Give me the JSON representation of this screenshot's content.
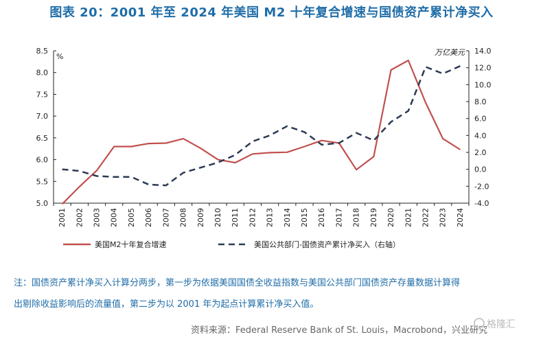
{
  "title": "图表 20：2001 年至 2024 年美国 M2 十年复合增速与国债资产累计净买入",
  "chart_data": {
    "type": "line",
    "x": [
      "2001",
      "2002",
      "2003",
      "2004",
      "2005",
      "2006",
      "2007",
      "2008",
      "2009",
      "2010",
      "2011",
      "2012",
      "2013",
      "2014",
      "2015",
      "2016",
      "2017",
      "2018",
      "2019",
      "2020",
      "2021",
      "2022",
      "2023",
      "2024"
    ],
    "left_axis": {
      "unit_label": "%",
      "ylim": [
        5.0,
        8.5
      ],
      "ticks": [
        "5.0",
        "5.5",
        "6.0",
        "6.5",
        "7.0",
        "7.5",
        "8.0",
        "8.5"
      ]
    },
    "right_axis": {
      "unit_label": "万亿美元",
      "ylim": [
        -4.0,
        14.0
      ],
      "ticks": [
        "-4.0",
        "-2.0",
        "0.0",
        "2.0",
        "4.0",
        "6.0",
        "8.0",
        "10.0",
        "12.0",
        "14.0"
      ]
    },
    "series": [
      {
        "name": "美国M2十年复合增速",
        "axis": "left",
        "style": "solid",
        "color": "#c0504d",
        "values": [
          4.98,
          5.38,
          5.75,
          6.3,
          6.3,
          6.37,
          6.38,
          6.48,
          6.26,
          6.0,
          5.93,
          6.13,
          6.16,
          6.17,
          6.3,
          6.44,
          6.38,
          5.77,
          6.07,
          8.06,
          8.28,
          7.31,
          6.48,
          6.23
        ]
      },
      {
        "name": "美国公共部门-国债资产累计净买入（右轴）",
        "axis": "right",
        "style": "dashed",
        "color": "#2b3a55",
        "values": [
          0.0,
          -0.2,
          -0.8,
          -0.9,
          -0.9,
          -1.8,
          -1.9,
          -0.4,
          0.2,
          0.8,
          1.7,
          3.3,
          4.0,
          5.1,
          4.4,
          2.9,
          3.1,
          4.3,
          3.4,
          5.6,
          6.9,
          12.1,
          11.3,
          12.2
        ]
      }
    ]
  },
  "note_line1": "注：国债资产累计净买入计算分两步，第一步为依据美国国债全收益指数与美国公共部门国债资产存量数据计算得",
  "note_line2": "出剔除收益影响后的流量值，第二步为以 2001 年为起点计算累计净买入值。",
  "source": "资料来源：Federal Reserve Bank of St. Louis，Macrobond，兴业研究",
  "watermark": "格隆汇"
}
